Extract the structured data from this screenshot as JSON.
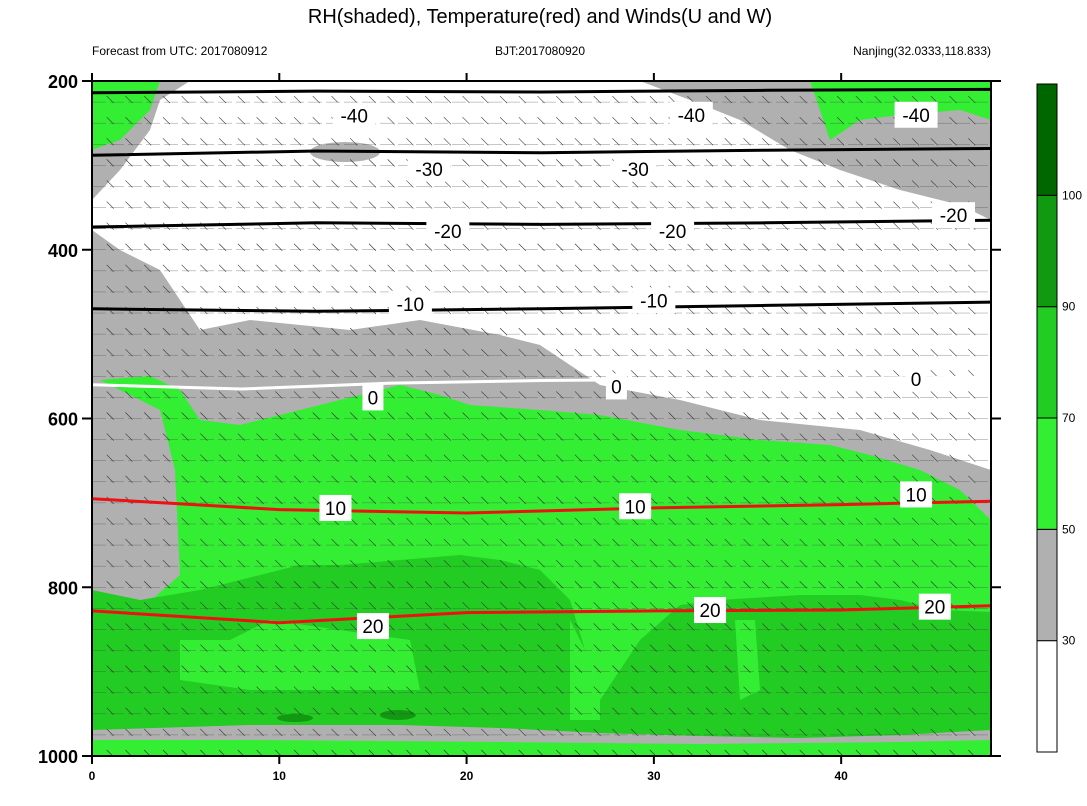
{
  "colors": {
    "rh_bands": [
      "#ffffff",
      "#b0b0b0",
      "#33ee33",
      "#22cc22",
      "#119911",
      "#006600"
    ],
    "temperature_negative": "#000000",
    "temperature_zero": "#ffffff",
    "temperature_positive": "#ee1111",
    "contour_line": "#000000"
  },
  "chart_data": {
    "type": "heatmap",
    "title": "RH(shaded), Temperature(red) and Winds(U and W)",
    "subtitle_left": "Forecast from UTC: 2017080912",
    "subtitle_center": "BJT:2017080920",
    "subtitle_right": "Nanjing(32.0333,118.833)",
    "x_axis": {
      "ticks": [
        "0",
        "10",
        "20",
        "30",
        "40"
      ],
      "range": [
        0,
        48
      ]
    },
    "y_axis": {
      "ticks": [
        "200",
        "400",
        "600",
        "800",
        "1000"
      ],
      "range": [
        1000,
        200
      ],
      "reversed": true
    },
    "colorbar": {
      "ticks": [
        "30",
        "50",
        "70",
        "90",
        "100"
      ],
      "levels": [
        30,
        50,
        70,
        90,
        100
      ]
    },
    "temperature_contours": [
      {
        "level": -40,
        "label": "-40",
        "points": [
          [
            0,
            214
          ],
          [
            12,
            212
          ],
          [
            24,
            213
          ],
          [
            36,
            211
          ],
          [
            48,
            210
          ]
        ]
      },
      {
        "level": -30,
        "label": "-30",
        "points": [
          [
            0,
            288
          ],
          [
            12,
            283
          ],
          [
            24,
            285
          ],
          [
            36,
            282
          ],
          [
            48,
            280
          ]
        ]
      },
      {
        "level": -20,
        "label": "-20",
        "points": [
          [
            0,
            373
          ],
          [
            12,
            368
          ],
          [
            24,
            370
          ],
          [
            36,
            368
          ],
          [
            48,
            365
          ]
        ]
      },
      {
        "level": -10,
        "label": "-10",
        "points": [
          [
            0,
            470
          ],
          [
            12,
            473
          ],
          [
            24,
            470
          ],
          [
            36,
            466
          ],
          [
            48,
            462
          ]
        ]
      },
      {
        "level": 0,
        "label": "0",
        "points": [
          [
            0,
            560
          ],
          [
            8,
            565
          ],
          [
            16,
            558
          ],
          [
            24,
            555
          ],
          [
            36,
            553
          ],
          [
            48,
            551
          ]
        ]
      },
      {
        "level": 10,
        "label": "10",
        "points": [
          [
            0,
            695
          ],
          [
            10,
            708
          ],
          [
            20,
            712
          ],
          [
            30,
            706
          ],
          [
            40,
            702
          ],
          [
            48,
            698
          ]
        ]
      },
      {
        "level": 20,
        "label": "20",
        "points": [
          [
            0,
            828
          ],
          [
            10,
            842
          ],
          [
            20,
            830
          ],
          [
            30,
            828
          ],
          [
            40,
            827
          ],
          [
            48,
            822
          ]
        ]
      }
    ],
    "contour_labels": [
      {
        "text": "-40",
        "x": 14,
        "y": 241
      },
      {
        "text": "-40",
        "x": 32,
        "y": 240
      },
      {
        "text": "-40",
        "x": 44,
        "y": 240
      },
      {
        "text": "-30",
        "x": 18,
        "y": 304
      },
      {
        "text": "-30",
        "x": 29,
        "y": 304
      },
      {
        "text": "-20",
        "x": 19,
        "y": 378
      },
      {
        "text": "-20",
        "x": 31,
        "y": 378
      },
      {
        "text": "-20",
        "x": 46,
        "y": 359
      },
      {
        "text": "-10",
        "x": 17,
        "y": 464
      },
      {
        "text": "-10",
        "x": 30,
        "y": 460
      },
      {
        "text": "0",
        "x": 15,
        "y": 575
      },
      {
        "text": "0",
        "x": 28,
        "y": 562
      },
      {
        "text": "0",
        "x": 44,
        "y": 553
      },
      {
        "text": "10",
        "x": 13,
        "y": 706
      },
      {
        "text": "10",
        "x": 29,
        "y": 704
      },
      {
        "text": "10",
        "x": 44,
        "y": 690
      },
      {
        "text": "20",
        "x": 15,
        "y": 846
      },
      {
        "text": "20",
        "x": 33,
        "y": 827
      },
      {
        "text": "20",
        "x": 45,
        "y": 823
      }
    ]
  }
}
